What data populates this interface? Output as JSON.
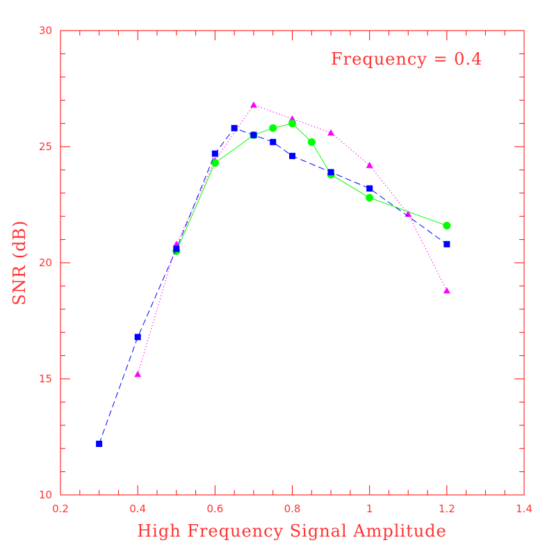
{
  "chart_data": {
    "type": "line",
    "title": "",
    "annotation": "Frequency = 0.4",
    "xlabel": "High Frequency Signal Amplitude",
    "ylabel": "SNR (dB)",
    "xlim": [
      0.2,
      1.4
    ],
    "ylim": [
      10,
      30
    ],
    "xticks": [
      0.2,
      0.4,
      0.6,
      0.8,
      1,
      1.2,
      1.4
    ],
    "yticks": [
      10,
      15,
      20,
      25,
      30
    ],
    "xtick_labels": [
      "0.2",
      "0.4",
      "0.6",
      "0.8",
      "1",
      "1.2",
      "1.4"
    ],
    "ytick_labels": [
      "10",
      "15",
      "20",
      "25",
      "30"
    ],
    "grid": false,
    "colors": {
      "frame": "#ff0000",
      "text": "#ff3333"
    },
    "series": [
      {
        "name": "magenta-triangles",
        "marker": "triangle",
        "line_style": "dotted",
        "color": "#ff00ff",
        "x": [
          0.4,
          0.5,
          0.6,
          0.7,
          0.8,
          0.9,
          1.0,
          1.1,
          1.2
        ],
        "y": [
          15.2,
          20.8,
          24.4,
          26.8,
          26.2,
          25.6,
          24.2,
          22.1,
          18.8
        ]
      },
      {
        "name": "green-circles",
        "marker": "circle",
        "line_style": "solid",
        "color": "#00ff00",
        "x": [
          0.5,
          0.6,
          0.7,
          0.75,
          0.8,
          0.85,
          0.9,
          1.0,
          1.2
        ],
        "y": [
          20.5,
          24.3,
          25.5,
          25.8,
          26.0,
          25.2,
          23.8,
          22.8,
          21.6
        ]
      },
      {
        "name": "blue-squares",
        "marker": "square",
        "line_style": "dashed",
        "color": "#0000ff",
        "x": [
          0.3,
          0.4,
          0.5,
          0.6,
          0.65,
          0.7,
          0.75,
          0.8,
          0.9,
          1.0,
          1.2
        ],
        "y": [
          12.2,
          16.8,
          20.6,
          24.7,
          25.8,
          25.5,
          25.2,
          24.6,
          23.9,
          23.2,
          20.8
        ]
      }
    ]
  }
}
